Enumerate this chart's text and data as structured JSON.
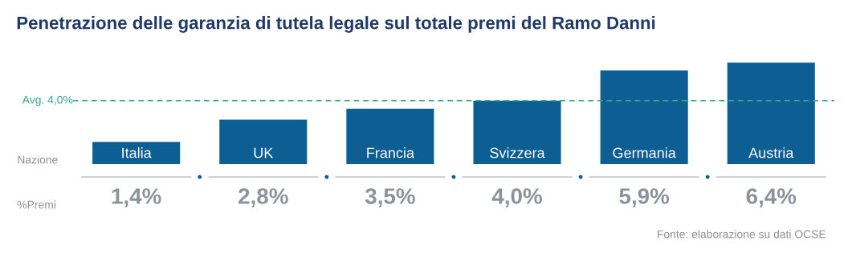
{
  "chart_data": {
    "type": "bar",
    "title": "Penetrazione delle garanzia di tutela legale sul totale premi del Ramo Danni",
    "categories": [
      "Italia",
      "UK",
      "Francia",
      "Svizzera",
      "Germania",
      "Austria"
    ],
    "values": [
      1.4,
      2.8,
      3.5,
      4.0,
      5.9,
      6.4
    ],
    "value_labels": [
      "1,4%",
      "2,8%",
      "3,5%",
      "4,0%",
      "5,9%",
      "6,4%"
    ],
    "color": "#0d5f93",
    "ref_lines": [
      {
        "axis": "y",
        "value": 4.0,
        "label": "Avg. 4,0%",
        "color": "#3aa98a",
        "line_style": "dashed"
      }
    ],
    "annotations": [
      "Nazione",
      "%Premi",
      "Fonte: elaborazione su dati OCSE"
    ],
    "legend": false
  }
}
